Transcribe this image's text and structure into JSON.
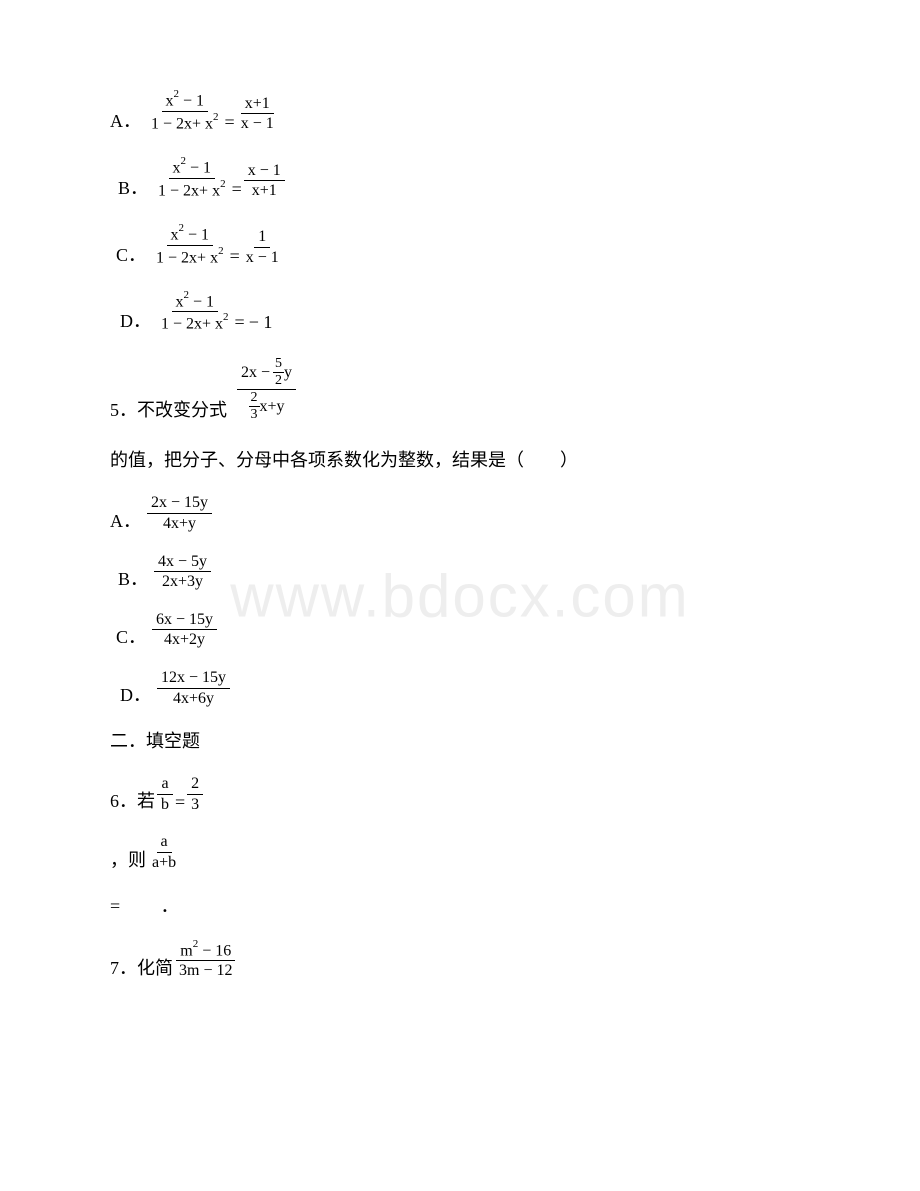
{
  "q4": {
    "optA": {
      "label": "A．",
      "lhs_num": "x<sup>2</sup> − 1",
      "lhs_den": "1 − 2x+ x<sup>2</sup>",
      "rhs_num": "x+1",
      "rhs_den": "x − 1"
    },
    "optB": {
      "label": "B．",
      "lhs_num": "x<sup>2</sup> − 1",
      "lhs_den": "1 − 2x+ x<sup>2</sup>",
      "rhs_num": "x − 1",
      "rhs_den": "x+1"
    },
    "optC": {
      "label": "C．",
      "lhs_num": "x<sup>2</sup> − 1",
      "lhs_den": "1 − 2x+ x<sup>2</sup>",
      "rhs_num": "1",
      "rhs_den": "x − 1"
    },
    "optD": {
      "label": "D．",
      "lhs_num": "x<sup>2</sup> − 1",
      "lhs_den": "1 − 2x+ x<sup>2</sup>",
      "rhs_text": "− 1"
    }
  },
  "q5": {
    "stem1_pre": "5．不改变分式",
    "big_num_a": "2x −",
    "big_num_frac_n": "5",
    "big_num_frac_d": "2",
    "big_num_b": "y",
    "big_den_frac_n": "2",
    "big_den_frac_d": "3",
    "big_den_b": "x+y",
    "stem2": "的值，把分子、分母中各项系数化为整数，结果是（　　）",
    "optA": {
      "label": "A．",
      "num": "2x − 15y",
      "den": "4x+y"
    },
    "optB": {
      "label": "B．",
      "num": "4x − 5y",
      "den": "2x+3y"
    },
    "optC": {
      "label": "C．",
      "num": "6x − 15y",
      "den": "4x+2y"
    },
    "optD": {
      "label": "D．",
      "num": "12x − 15y",
      "den": "4x+6y"
    }
  },
  "sec2": "二．填空题",
  "q6": {
    "pre": "6．若",
    "lhs_num": "a",
    "lhs_den": "b",
    "rhs_num": "2",
    "rhs_den": "3",
    "mid": "，则",
    "then_num": "a",
    "then_den": "a+b",
    "eq_line": "=　  　．"
  },
  "q7": {
    "pre": "7．化简",
    "num": "m<sup>2</sup> − 16",
    "den": "3m − 12"
  },
  "watermark": "www.bdocx.com"
}
